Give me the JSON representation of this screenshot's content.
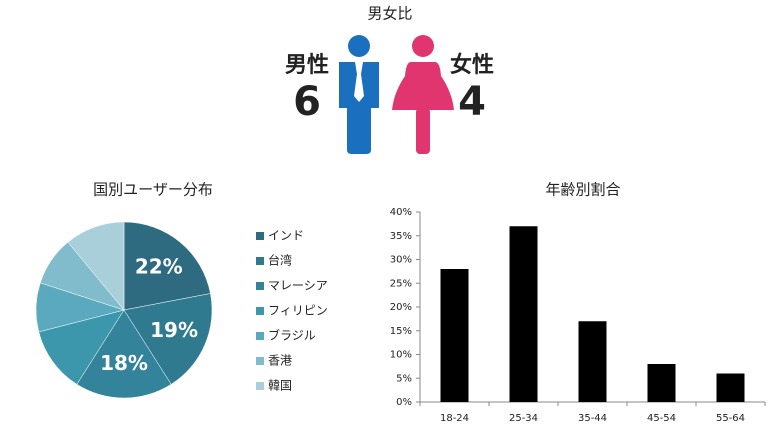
{
  "gender": {
    "title": "男女比",
    "male": {
      "label": "男性",
      "value": 6
    },
    "female": {
      "label": "女性",
      "value": 4
    }
  },
  "chart_data": [
    {
      "type": "pie",
      "title": "国別ユーザー分布",
      "categories": [
        "インド",
        "台湾",
        "マレーシア",
        "フィリピン",
        "ブラジル",
        "香港",
        "韓国"
      ],
      "values": [
        22,
        19,
        18,
        12,
        9,
        9,
        11
      ],
      "value_labels": [
        "22%",
        "19%",
        "18%",
        null,
        null,
        null,
        null
      ],
      "colors": [
        "#2e6b80",
        "#2f7a8f",
        "#33849b",
        "#3c97ad",
        "#5aa9be",
        "#80bccc",
        "#a9d0da"
      ]
    },
    {
      "type": "bar",
      "title": "年齢別割合",
      "categories": [
        "18-24",
        "25-34",
        "35-44",
        "45-54",
        "55-64"
      ],
      "values": [
        28,
        37,
        17,
        8,
        6
      ],
      "color": "#000000",
      "ylim": [
        0,
        40
      ],
      "yticks": [
        {
          "value": 0,
          "label": "0%"
        },
        {
          "value": 5,
          "label": "5%"
        },
        {
          "value": 10,
          "label": "10%"
        },
        {
          "value": 15,
          "label": "15%"
        },
        {
          "value": 20,
          "label": "20%"
        },
        {
          "value": 25,
          "label": "25%"
        },
        {
          "value": 30,
          "label": "30%"
        },
        {
          "value": 35,
          "label": "35%"
        },
        {
          "value": 40,
          "label": "40%"
        }
      ]
    }
  ]
}
